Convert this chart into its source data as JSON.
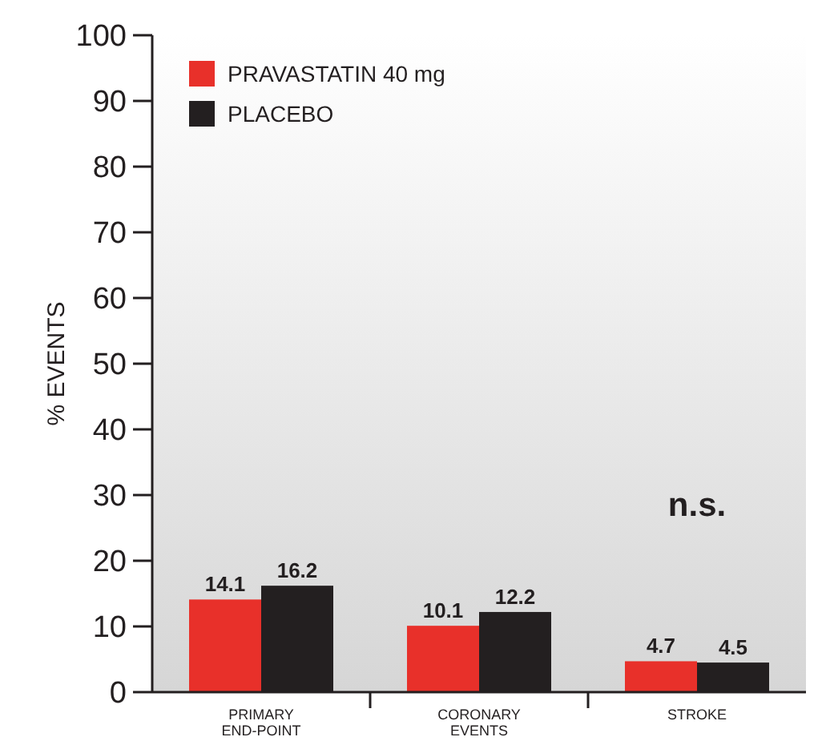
{
  "chart_data": {
    "type": "bar",
    "ylabel": "% EVENTS",
    "categories": [
      "PRIMARY\nEND-POINT",
      "CORONARY\nEVENTS",
      "STROKE"
    ],
    "series": [
      {
        "name": "PRAVASTATIN 40 mg",
        "color": "#e8302a",
        "values": [
          14.1,
          10.1,
          4.7
        ]
      },
      {
        "name": "PLACEBO",
        "color": "#231f20",
        "values": [
          16.2,
          12.2,
          4.5
        ]
      }
    ],
    "ylim": [
      0,
      100
    ],
    "yticks": [
      0,
      10,
      20,
      30,
      40,
      50,
      60,
      70,
      80,
      90,
      100
    ],
    "data_labels": true,
    "legend": "top left",
    "annotations": [
      "n.s."
    ]
  }
}
